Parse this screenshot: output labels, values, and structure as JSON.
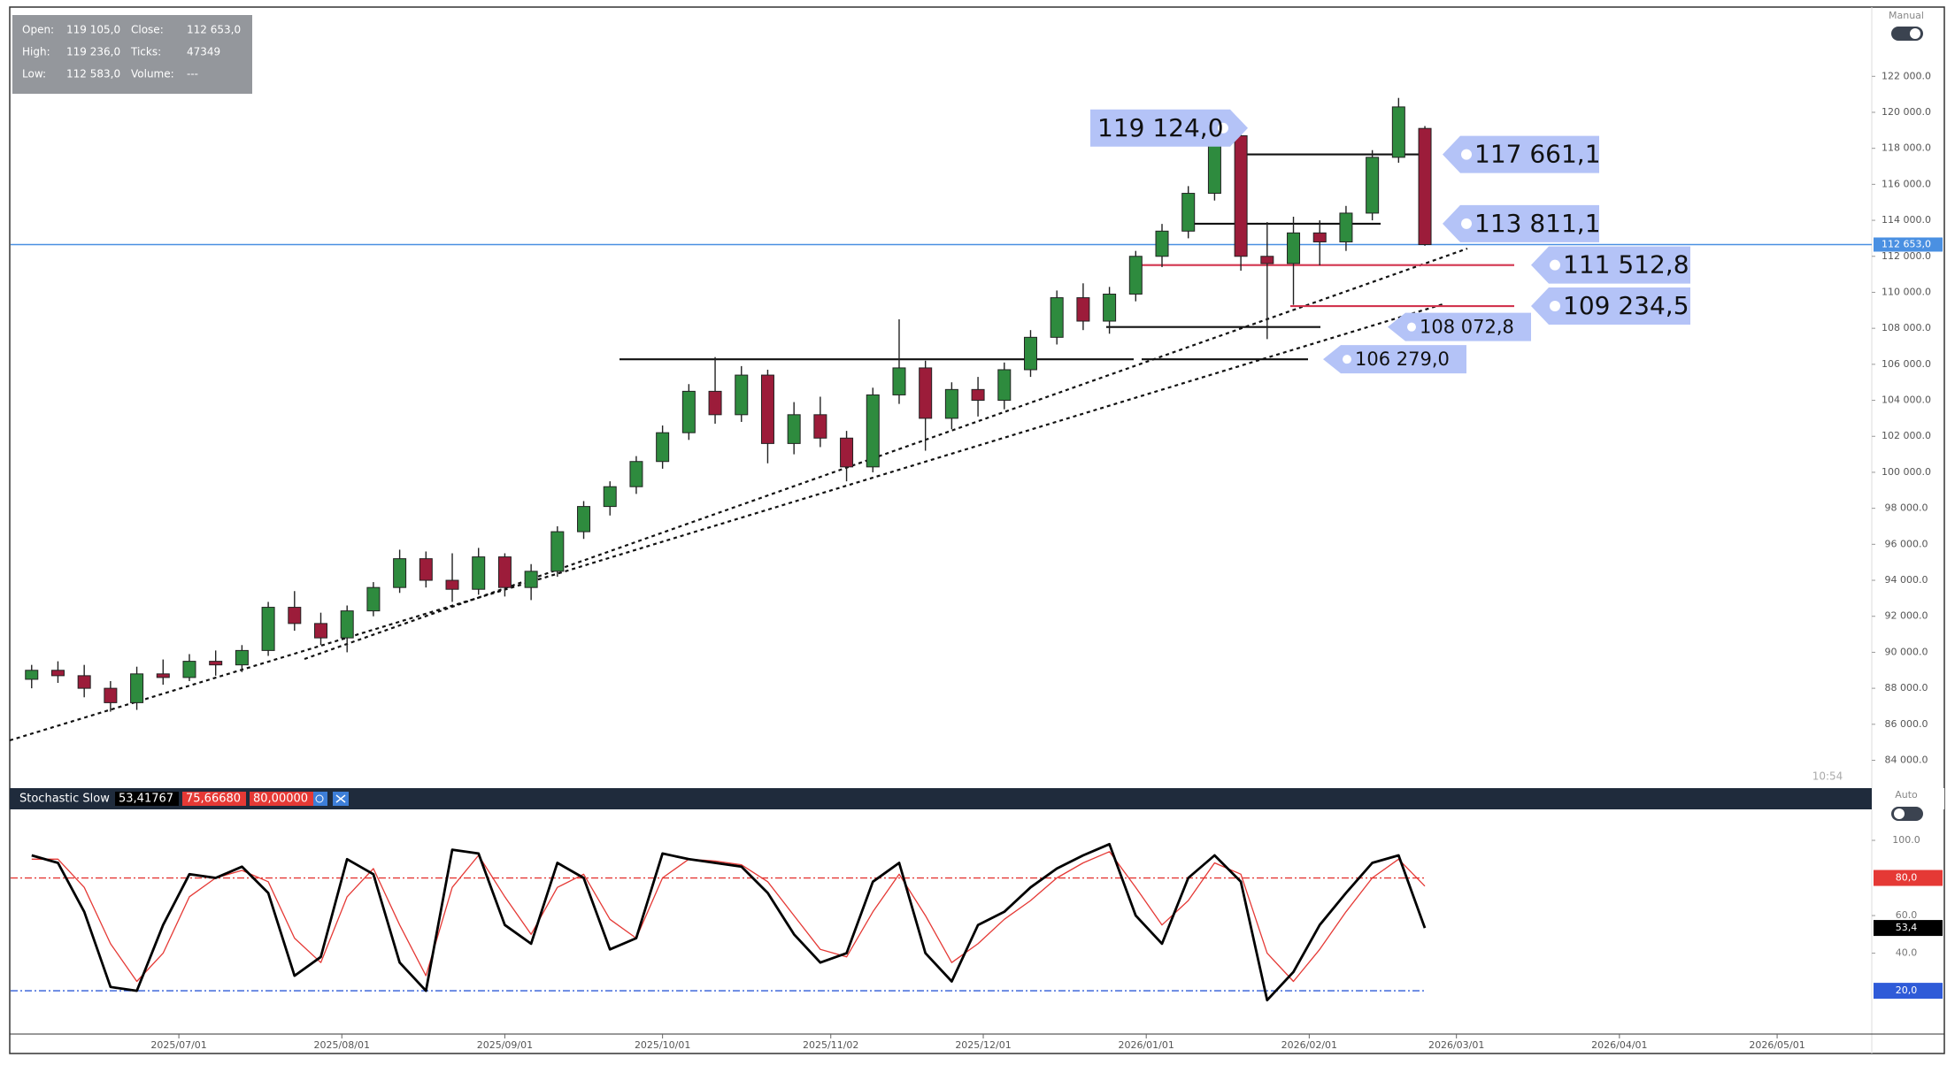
{
  "header": {
    "open_label": "Open:",
    "open": "119 105,0",
    "close_label": "Close:",
    "close": "112 653,0",
    "high_label": "High:",
    "high": "119 236,0",
    "ticks_label": "Ticks:",
    "ticks": "47349",
    "low_label": "Low:",
    "low": "112 583,0",
    "volume_label": "Volume:",
    "volume": "---"
  },
  "mode_label": "Manual",
  "time": "10:54",
  "chart_data": [
    {
      "type": "candlestick",
      "up_color": "#2e8b3e",
      "down_color": "#9c1c3a",
      "x": [
        "2025/06/03",
        "2025/06/08",
        "2025/06/13",
        "2025/06/18",
        "2025/06/23",
        "2025/06/28",
        "2025/07/03",
        "2025/07/08",
        "2025/07/13",
        "2025/07/18",
        "2025/07/23",
        "2025/07/28",
        "2025/08/02",
        "2025/08/07",
        "2025/08/12",
        "2025/08/17",
        "2025/08/22",
        "2025/08/27",
        "2025/09/01",
        "2025/09/06",
        "2025/09/11",
        "2025/09/16",
        "2025/09/21",
        "2025/09/26",
        "2025/10/01",
        "2025/10/06",
        "2025/10/11",
        "2025/10/16",
        "2025/10/21",
        "2025/10/26",
        "2025/10/31",
        "2025/11/05",
        "2025/11/10",
        "2025/11/15",
        "2025/11/20",
        "2025/11/25",
        "2025/11/30",
        "2025/12/05",
        "2025/12/10",
        "2025/12/15",
        "2025/12/20",
        "2025/12/25",
        "2025/12/30",
        "2026/01/04",
        "2026/01/09",
        "2026/01/14",
        "2026/01/19",
        "2026/01/24",
        "2026/01/29",
        "2026/02/03",
        "2026/02/08",
        "2026/02/13",
        "2026/02/18",
        "2026/02/23"
      ],
      "open": [
        88500,
        89000,
        88700,
        88000,
        87200,
        88800,
        88600,
        89500,
        89300,
        90100,
        92500,
        91600,
        90800,
        92300,
        93600,
        95200,
        94000,
        93500,
        95300,
        93600,
        94500,
        96700,
        98100,
        99200,
        100600,
        102200,
        104500,
        103200,
        105400,
        101600,
        103200,
        101900,
        100300,
        104300,
        105800,
        103000,
        104600,
        104000,
        105700,
        107500,
        109700,
        108400,
        109900,
        112000,
        113400,
        115500,
        118700,
        112000,
        111600,
        113300,
        112800,
        114400,
        117500,
        119105
      ],
      "high": [
        89300,
        89500,
        89300,
        88400,
        89200,
        89600,
        89900,
        90100,
        90400,
        92800,
        93400,
        92200,
        92600,
        93900,
        95700,
        95600,
        95500,
        95800,
        95500,
        94900,
        97000,
        98400,
        99500,
        100900,
        102600,
        104900,
        106400,
        105900,
        105700,
        103900,
        104200,
        102300,
        104700,
        108500,
        106200,
        105000,
        105300,
        106100,
        107900,
        110100,
        110500,
        110300,
        112300,
        113800,
        115900,
        119124,
        119000,
        113900,
        114200,
        114000,
        114800,
        117900,
        120800,
        119236
      ],
      "low": [
        88000,
        88300,
        87500,
        86700,
        86800,
        88200,
        88400,
        88700,
        88900,
        89800,
        91200,
        90400,
        90000,
        92000,
        93300,
        93600,
        92800,
        93200,
        93100,
        92900,
        94200,
        96300,
        97600,
        98800,
        100200,
        101800,
        102700,
        102800,
        100500,
        101000,
        101400,
        99500,
        100000,
        103800,
        101200,
        102400,
        103100,
        103500,
        105300,
        107100,
        107900,
        107700,
        109500,
        111400,
        113000,
        115100,
        111200,
        107400,
        109300,
        111500,
        112300,
        114000,
        117200,
        112583
      ],
      "close": [
        89000,
        88700,
        88000,
        87200,
        88800,
        88600,
        89500,
        89300,
        90100,
        92500,
        91600,
        90800,
        92300,
        93600,
        95200,
        94000,
        93500,
        95300,
        93600,
        94500,
        96700,
        98100,
        99200,
        100600,
        102200,
        104500,
        103200,
        105400,
        101600,
        103200,
        101900,
        100300,
        104300,
        105800,
        103000,
        104600,
        104000,
        105700,
        107500,
        109700,
        108400,
        109900,
        112000,
        113400,
        115500,
        118700,
        112000,
        111600,
        113300,
        112800,
        114400,
        117500,
        120300,
        112653
      ],
      "xlim": [
        "2025/05/30",
        "2026/05/19"
      ],
      "ylim": [
        82600,
        125700
      ],
      "yticks": [
        {
          "value": 84000,
          "label": "84 000.0"
        },
        {
          "value": 86000,
          "label": "86 000.0"
        },
        {
          "value": 88000,
          "label": "88 000.0"
        },
        {
          "value": 90000,
          "label": "90 000.0"
        },
        {
          "value": 92000,
          "label": "92 000.0"
        },
        {
          "value": 94000,
          "label": "94 000.0"
        },
        {
          "value": 96000,
          "label": "96 000.0"
        },
        {
          "value": 98000,
          "label": "98 000.0"
        },
        {
          "value": 100000,
          "label": "100 000.0"
        },
        {
          "value": 102000,
          "label": "102 000.0"
        },
        {
          "value": 104000,
          "label": "104 000.0"
        },
        {
          "value": 106000,
          "label": "106 000.0"
        },
        {
          "value": 108000,
          "label": "108 000.0"
        },
        {
          "value": 110000,
          "label": "110 000.0"
        },
        {
          "value": 112000,
          "label": "112 000.0"
        },
        {
          "value": 114000,
          "label": "114 000.0"
        },
        {
          "value": 116000,
          "label": "116 000.0"
        },
        {
          "value": 118000,
          "label": "118 000.0"
        },
        {
          "value": 120000,
          "label": "120 000.0"
        },
        {
          "value": 122000,
          "label": "122 000.0"
        }
      ],
      "last_price": {
        "value": 112653,
        "label": "112 653,0",
        "color": "#4a90e2"
      },
      "levels": [
        {
          "value": 119124,
          "label": "119 124,0"
        },
        {
          "value": 117661.1,
          "label": "117 661,1",
          "color": "#111111"
        },
        {
          "value": 113811.1,
          "label": "113 811,1",
          "color": "#111111"
        },
        {
          "value": 111512.8,
          "label": "111 512,8",
          "color": "#d2344e"
        },
        {
          "value": 109234.5,
          "label": "109 234,5",
          "color": "#d2344e"
        },
        {
          "value": 108072.8,
          "label": "108 072,8",
          "color": "#111111"
        },
        {
          "value": 106279,
          "label": "106 279,0",
          "color": "#111111"
        }
      ]
    },
    {
      "type": "line",
      "title": "Stochastic Slow",
      "mode_label": "Auto",
      "x": [
        "2025/06/03",
        "2025/06/08",
        "2025/06/13",
        "2025/06/18",
        "2025/06/23",
        "2025/06/28",
        "2025/07/03",
        "2025/07/08",
        "2025/07/13",
        "2025/07/18",
        "2025/07/23",
        "2025/07/28",
        "2025/08/02",
        "2025/08/07",
        "2025/08/12",
        "2025/08/17",
        "2025/08/22",
        "2025/08/27",
        "2025/09/01",
        "2025/09/06",
        "2025/09/11",
        "2025/09/16",
        "2025/09/21",
        "2025/09/26",
        "2025/10/01",
        "2025/10/06",
        "2025/10/11",
        "2025/10/16",
        "2025/10/21",
        "2025/10/26",
        "2025/10/31",
        "2025/11/05",
        "2025/11/10",
        "2025/11/15",
        "2025/11/20",
        "2025/11/25",
        "2025/11/30",
        "2025/12/05",
        "2025/12/10",
        "2025/12/15",
        "2025/12/20",
        "2025/12/25",
        "2025/12/30",
        "2026/01/04",
        "2026/01/09",
        "2026/01/14",
        "2026/01/19",
        "2026/01/24",
        "2026/01/29",
        "2026/02/03",
        "2026/02/08",
        "2026/02/13",
        "2026/02/18",
        "2026/02/23"
      ],
      "series": [
        {
          "name": "53,41767",
          "color": "#000000",
          "values": [
            92,
            88,
            62,
            22,
            20,
            55,
            82,
            80,
            86,
            72,
            28,
            38,
            90,
            82,
            35,
            20,
            95,
            93,
            55,
            45,
            88,
            80,
            42,
            48,
            93,
            90,
            88,
            86,
            72,
            50,
            35,
            40,
            78,
            88,
            40,
            25,
            55,
            62,
            75,
            85,
            92,
            98,
            60,
            45,
            80,
            92,
            78,
            15,
            30,
            55,
            72,
            88,
            92,
            53.41767
          ]
        },
        {
          "name": "75,66680",
          "color": "#e53935",
          "values": [
            90,
            90,
            75,
            45,
            25,
            40,
            70,
            80,
            84,
            78,
            48,
            35,
            70,
            85,
            55,
            28,
            75,
            92,
            70,
            50,
            75,
            82,
            58,
            48,
            80,
            90,
            89,
            87,
            78,
            60,
            42,
            38,
            62,
            82,
            60,
            35,
            45,
            58,
            68,
            80,
            88,
            94,
            75,
            55,
            68,
            88,
            82,
            40,
            25,
            42,
            62,
            80,
            90,
            75.6668
          ]
        }
      ],
      "levels": [
        {
          "value": 80,
          "label": "80,0",
          "legend": "80,00000",
          "color": "#e53935"
        },
        {
          "value": 20,
          "label": "20,0",
          "color": "#2f5bd8"
        }
      ],
      "last_label": {
        "value": 53.4,
        "label": "53,4"
      },
      "xlim": [
        "2025/05/30",
        "2026/05/19"
      ],
      "ylim": [
        -3,
        116
      ],
      "yticks": [
        {
          "value": 100,
          "label": "100.0"
        },
        {
          "value": 60,
          "label": "60.0"
        },
        {
          "value": 40,
          "label": "40.0"
        }
      ],
      "xticks": [
        "2025/07/01",
        "2025/08/01",
        "2025/09/01",
        "2025/10/01",
        "2025/11/02",
        "2025/12/01",
        "2026/01/01",
        "2026/02/01",
        "2026/03/01",
        "2026/04/01",
        "2026/05/01"
      ]
    }
  ]
}
